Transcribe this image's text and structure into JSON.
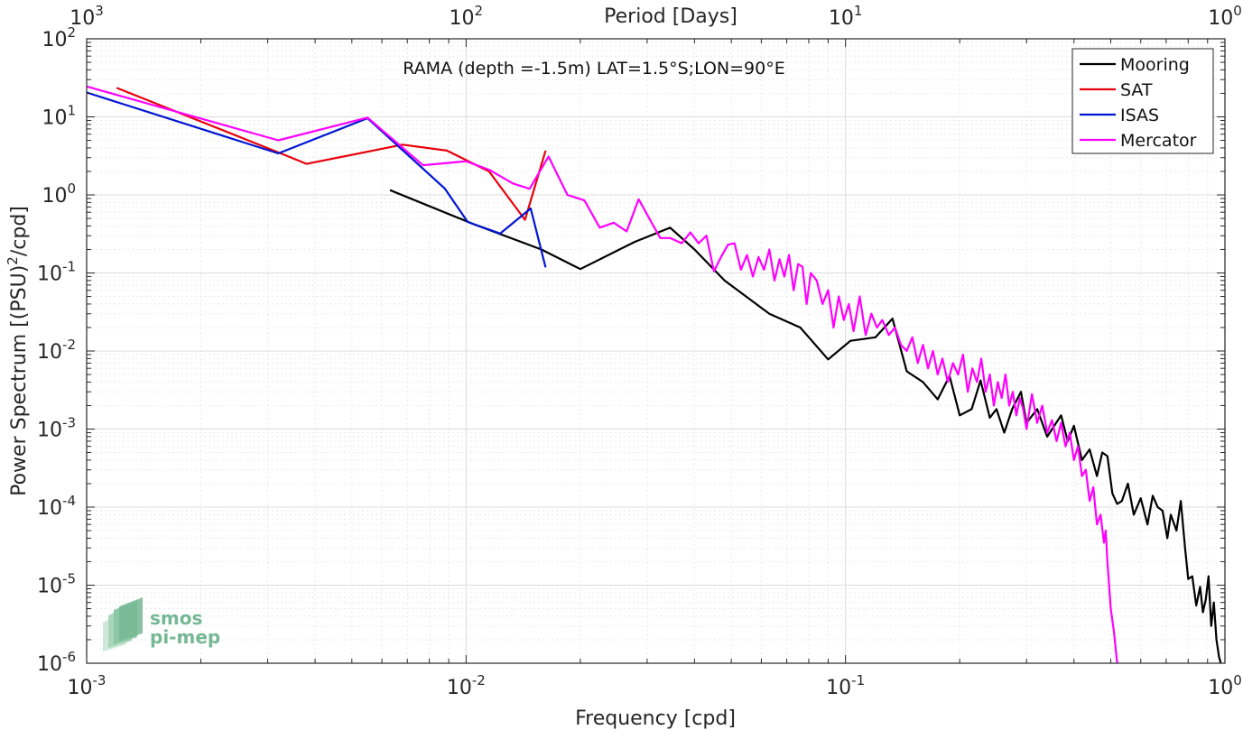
{
  "chart_data": {
    "type": "line",
    "title": "",
    "annotation": "RAMA (depth =-1.5m) LAT=1.5°S;LON=90°E",
    "xlabel": "Frequency [cpd]",
    "ylabel": "Power Spectrum [(PSU)",
    "ylabel_sup": "2",
    "ylabel_tail": "/cpd]",
    "top_xlabel": "Period [Days]",
    "xscale": "log",
    "yscale": "log",
    "xlim": [
      0.001,
      1
    ],
    "ylim": [
      1e-06,
      100
    ],
    "grid": true,
    "legend_position": "top-right",
    "x_ticks": [
      {
        "base": "10",
        "exp": "-3"
      },
      {
        "base": "10",
        "exp": "-2"
      },
      {
        "base": "10",
        "exp": "-1"
      },
      {
        "base": "10",
        "exp": "0"
      }
    ],
    "top_ticks": [
      {
        "base": "10",
        "exp": "3"
      },
      {
        "base": "10",
        "exp": "2"
      },
      {
        "base": "10",
        "exp": "1"
      },
      {
        "base": "10",
        "exp": "0"
      }
    ],
    "y_ticks": [
      {
        "base": "10",
        "exp": "2"
      },
      {
        "base": "10",
        "exp": "1"
      },
      {
        "base": "10",
        "exp": "0"
      },
      {
        "base": "10",
        "exp": "-1"
      },
      {
        "base": "10",
        "exp": "-2"
      },
      {
        "base": "10",
        "exp": "-3"
      },
      {
        "base": "10",
        "exp": "-4"
      },
      {
        "base": "10",
        "exp": "-5"
      },
      {
        "base": "10",
        "exp": "-6"
      }
    ],
    "series": [
      {
        "name": "Mooring",
        "color": "#000000",
        "points": [
          [
            0.0063,
            1.15
          ],
          [
            0.0105,
            0.42
          ],
          [
            0.0158,
            0.2
          ],
          [
            0.02,
            0.112
          ],
          [
            0.0278,
            0.25
          ],
          [
            0.0345,
            0.38
          ],
          [
            0.04,
            0.2
          ],
          [
            0.048,
            0.08
          ],
          [
            0.063,
            0.03
          ],
          [
            0.076,
            0.02
          ],
          [
            0.09,
            0.0078
          ],
          [
            0.103,
            0.0135
          ],
          [
            0.12,
            0.015
          ],
          [
            0.133,
            0.026
          ],
          [
            0.145,
            0.0055
          ],
          [
            0.16,
            0.004
          ],
          [
            0.175,
            0.0024
          ],
          [
            0.188,
            0.0048
          ],
          [
            0.2,
            0.0015
          ],
          [
            0.215,
            0.0018
          ],
          [
            0.227,
            0.0042
          ],
          [
            0.24,
            0.0014
          ],
          [
            0.25,
            0.0018
          ],
          [
            0.262,
            0.0009
          ],
          [
            0.275,
            0.0018
          ],
          [
            0.29,
            0.003
          ],
          [
            0.3,
            0.0012
          ],
          [
            0.32,
            0.0018
          ],
          [
            0.34,
            0.0008
          ],
          [
            0.355,
            0.0011
          ],
          [
            0.37,
            0.0015
          ],
          [
            0.385,
            0.0007
          ],
          [
            0.4,
            0.0011
          ],
          [
            0.42,
            0.0004
          ],
          [
            0.44,
            0.00055
          ],
          [
            0.46,
            0.00025
          ],
          [
            0.475,
            0.0005
          ],
          [
            0.49,
            0.00045
          ],
          [
            0.505,
            0.00015
          ],
          [
            0.52,
            0.00011
          ],
          [
            0.535,
            0.00012
          ],
          [
            0.555,
            0.0002
          ],
          [
            0.575,
            8e-05
          ],
          [
            0.6,
            0.00013
          ],
          [
            0.625,
            6e-05
          ],
          [
            0.645,
            0.00014
          ],
          [
            0.665,
            0.0001
          ],
          [
            0.685,
            9e-05
          ],
          [
            0.705,
            4e-05
          ],
          [
            0.72,
            8e-05
          ],
          [
            0.745,
            5e-05
          ],
          [
            0.765,
            0.00012
          ],
          [
            0.785,
            3e-05
          ],
          [
            0.8,
            1.2e-05
          ],
          [
            0.82,
            1.3e-05
          ],
          [
            0.84,
            5.5e-06
          ],
          [
            0.86,
            9.5e-06
          ],
          [
            0.875,
            4.5e-06
          ],
          [
            0.89,
            6.5e-06
          ],
          [
            0.905,
            1.3e-05
          ],
          [
            0.92,
            3e-06
          ],
          [
            0.935,
            6e-06
          ],
          [
            0.95,
            2e-06
          ],
          [
            0.965,
            1.2e-06
          ],
          [
            0.975,
            1e-06
          ]
        ]
      },
      {
        "name": "SAT",
        "color": "#e8000b",
        "points": [
          [
            0.0012,
            23.5
          ],
          [
            0.0032,
            3.5
          ],
          [
            0.0038,
            2.5
          ],
          [
            0.0068,
            4.4
          ],
          [
            0.0089,
            3.7
          ],
          [
            0.0115,
            2.0
          ],
          [
            0.0143,
            0.48
          ],
          [
            0.0162,
            3.7
          ]
        ]
      },
      {
        "name": "ISAS",
        "color": "#0015d4",
        "points": [
          [
            0.001,
            20.5
          ],
          [
            0.0032,
            3.4
          ],
          [
            0.0055,
            9.6
          ],
          [
            0.0088,
            1.2
          ],
          [
            0.0101,
            0.45
          ],
          [
            0.0123,
            0.32
          ],
          [
            0.0148,
            0.67
          ],
          [
            0.0162,
            0.118
          ]
        ]
      },
      {
        "name": "Mercator",
        "color": "#ff00ff",
        "points": [
          [
            0.001,
            24.5
          ],
          [
            0.0032,
            5.0
          ],
          [
            0.0055,
            9.8
          ],
          [
            0.0077,
            2.4
          ],
          [
            0.01,
            2.7
          ],
          [
            0.0115,
            2.1
          ],
          [
            0.0133,
            1.4
          ],
          [
            0.0147,
            1.2
          ],
          [
            0.0165,
            3.1
          ],
          [
            0.0185,
            1.0
          ],
          [
            0.0205,
            0.85
          ],
          [
            0.0225,
            0.38
          ],
          [
            0.0245,
            0.44
          ],
          [
            0.0265,
            0.34
          ],
          [
            0.0285,
            0.88
          ],
          [
            0.031,
            0.42
          ],
          [
            0.0325,
            0.28
          ],
          [
            0.0345,
            0.28
          ],
          [
            0.037,
            0.24
          ],
          [
            0.039,
            0.33
          ],
          [
            0.041,
            0.24
          ],
          [
            0.043,
            0.3
          ],
          [
            0.045,
            0.105
          ],
          [
            0.047,
            0.16
          ],
          [
            0.049,
            0.23
          ],
          [
            0.051,
            0.24
          ],
          [
            0.053,
            0.11
          ],
          [
            0.055,
            0.17
          ],
          [
            0.057,
            0.09
          ],
          [
            0.059,
            0.16
          ],
          [
            0.061,
            0.11
          ],
          [
            0.063,
            0.2
          ],
          [
            0.065,
            0.08
          ],
          [
            0.067,
            0.15
          ],
          [
            0.069,
            0.09
          ],
          [
            0.071,
            0.17
          ],
          [
            0.073,
            0.06
          ],
          [
            0.075,
            0.13
          ],
          [
            0.077,
            0.12
          ],
          [
            0.079,
            0.04
          ],
          [
            0.081,
            0.1
          ],
          [
            0.084,
            0.08
          ],
          [
            0.087,
            0.04
          ],
          [
            0.09,
            0.06
          ],
          [
            0.093,
            0.02
          ],
          [
            0.096,
            0.05
          ],
          [
            0.099,
            0.025
          ],
          [
            0.102,
            0.04
          ],
          [
            0.105,
            0.018
          ],
          [
            0.109,
            0.05
          ],
          [
            0.113,
            0.016
          ],
          [
            0.117,
            0.03
          ],
          [
            0.121,
            0.02
          ],
          [
            0.125,
            0.025
          ],
          [
            0.13,
            0.016
          ],
          [
            0.135,
            0.02
          ],
          [
            0.14,
            0.012
          ],
          [
            0.145,
            0.01
          ],
          [
            0.15,
            0.015
          ],
          [
            0.155,
            0.007
          ],
          [
            0.16,
            0.012
          ],
          [
            0.165,
            0.006
          ],
          [
            0.17,
            0.01
          ],
          [
            0.175,
            0.005
          ],
          [
            0.18,
            0.008
          ],
          [
            0.186,
            0.004
          ],
          [
            0.192,
            0.007
          ],
          [
            0.198,
            0.005
          ],
          [
            0.204,
            0.009
          ],
          [
            0.21,
            0.003
          ],
          [
            0.216,
            0.006
          ],
          [
            0.222,
            0.004
          ],
          [
            0.228,
            0.008
          ],
          [
            0.234,
            0.003
          ],
          [
            0.24,
            0.005
          ],
          [
            0.246,
            0.002
          ],
          [
            0.252,
            0.004
          ],
          [
            0.258,
            0.0025
          ],
          [
            0.264,
            0.005
          ],
          [
            0.27,
            0.002
          ],
          [
            0.276,
            0.003
          ],
          [
            0.282,
            0.0015
          ],
          [
            0.288,
            0.0025
          ],
          [
            0.294,
            0.0018
          ],
          [
            0.3,
            0.001
          ],
          [
            0.31,
            0.0028
          ],
          [
            0.32,
            0.0012
          ],
          [
            0.33,
            0.002
          ],
          [
            0.34,
            0.0009
          ],
          [
            0.35,
            0.0013
          ],
          [
            0.36,
            0.0007
          ],
          [
            0.37,
            0.0012
          ],
          [
            0.38,
            0.0006
          ],
          [
            0.39,
            0.0009
          ],
          [
            0.4,
            0.0004
          ],
          [
            0.41,
            0.0006
          ],
          [
            0.42,
            0.00025
          ],
          [
            0.43,
            0.0003
          ],
          [
            0.44,
            0.00012
          ],
          [
            0.45,
            0.00018
          ],
          [
            0.46,
            6e-05
          ],
          [
            0.47,
            8e-05
          ],
          [
            0.48,
            3.5e-05
          ],
          [
            0.485,
            5e-05
          ],
          [
            0.49,
            2e-05
          ],
          [
            0.5,
            5e-06
          ],
          [
            0.51,
            2.5e-06
          ],
          [
            0.52,
            1e-06
          ]
        ]
      }
    ]
  },
  "logo": {
    "line1": "smos",
    "line2": "pi-mep",
    "color": "#74b894"
  }
}
